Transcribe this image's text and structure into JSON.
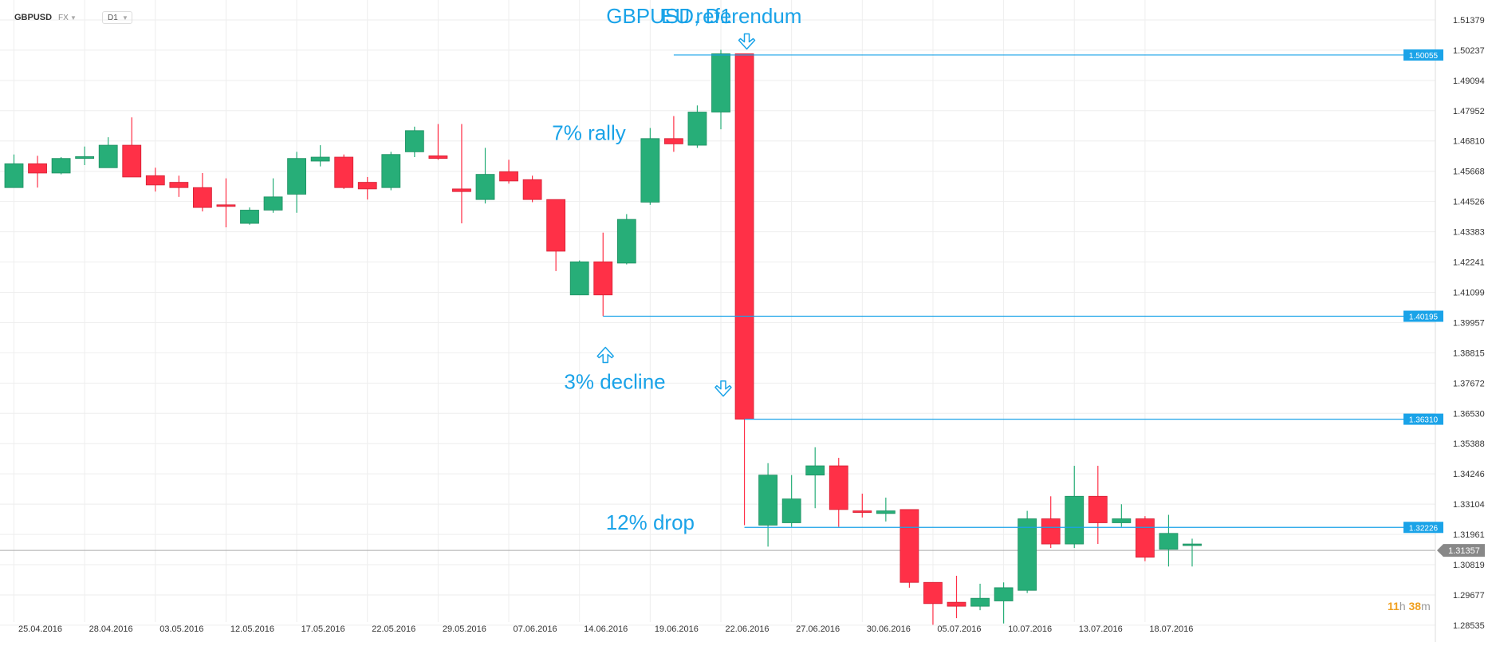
{
  "header": {
    "symbol": "GBPUSD",
    "market": "FX",
    "timeframe": "D1"
  },
  "countdown": {
    "hours": "11",
    "hours_unit": "h",
    "minutes": "38",
    "minutes_unit": "m"
  },
  "colors": {
    "bull": "#27ae78",
    "bear": "#ff3047",
    "line": "#1aa3e8",
    "annotation": "#1aa3e8",
    "grid": "#eeeeee",
    "axis_text": "#333333",
    "current_price_line": "#aaaaaa",
    "current_price_tag": "#888888"
  },
  "chart_data": {
    "type": "candlestick",
    "y_range": [
      1.279,
      1.5213
    ],
    "y_ticks": [
      "1.51379",
      "1.50237",
      "1.49094",
      "1.47952",
      "1.46810",
      "1.45668",
      "1.44526",
      "1.43383",
      "1.42241",
      "1.41099",
      "1.39957",
      "1.38815",
      "1.37672",
      "1.36530",
      "1.35388",
      "1.34246",
      "1.33104",
      "1.31961",
      "1.30819",
      "1.29677",
      "1.28535"
    ],
    "x_labels": [
      {
        "index": 0,
        "label": "25.04.2016"
      },
      {
        "index": 3,
        "label": "28.04.2016"
      },
      {
        "index": 6,
        "label": "03.05.2016"
      },
      {
        "index": 9,
        "label": "12.05.2016"
      },
      {
        "index": 12,
        "label": "17.05.2016"
      },
      {
        "index": 15,
        "label": "22.05.2016"
      },
      {
        "index": 18,
        "label": "29.05.2016"
      },
      {
        "index": 21,
        "label": "07.06.2016"
      },
      {
        "index": 24,
        "label": "14.06.2016"
      },
      {
        "index": 27,
        "label": "19.06.2016"
      },
      {
        "index": 30,
        "label": "22.06.2016"
      },
      {
        "index": 33,
        "label": "27.06.2016"
      },
      {
        "index": 36,
        "label": "30.06.2016"
      },
      {
        "index": 39,
        "label": "05.07.2016"
      },
      {
        "index": 42,
        "label": "10.07.2016"
      },
      {
        "index": 45,
        "label": "13.07.2016"
      },
      {
        "index": 48,
        "label": "18.07.2016"
      }
    ],
    "candles": [
      {
        "o": 1.4505,
        "h": 1.463,
        "l": 1.4505,
        "c": 1.4595
      },
      {
        "o": 1.4595,
        "h": 1.4625,
        "l": 1.4505,
        "c": 1.456
      },
      {
        "o": 1.456,
        "h": 1.462,
        "l": 1.4555,
        "c": 1.4615
      },
      {
        "o": 1.4615,
        "h": 1.466,
        "l": 1.459,
        "c": 1.4622
      },
      {
        "o": 1.458,
        "h": 1.4695,
        "l": 1.458,
        "c": 1.4665
      },
      {
        "o": 1.4665,
        "h": 1.477,
        "l": 1.4545,
        "c": 1.4545
      },
      {
        "o": 1.455,
        "h": 1.458,
        "l": 1.449,
        "c": 1.4515
      },
      {
        "o": 1.4525,
        "h": 1.455,
        "l": 1.447,
        "c": 1.4505
      },
      {
        "o": 1.4505,
        "h": 1.456,
        "l": 1.4415,
        "c": 1.443
      },
      {
        "o": 1.444,
        "h": 1.454,
        "l": 1.4355,
        "c": 1.4435
      },
      {
        "o": 1.437,
        "h": 1.443,
        "l": 1.4365,
        "c": 1.442
      },
      {
        "o": 1.442,
        "h": 1.454,
        "l": 1.441,
        "c": 1.447
      },
      {
        "o": 1.448,
        "h": 1.464,
        "l": 1.441,
        "c": 1.4615
      },
      {
        "o": 1.4605,
        "h": 1.4665,
        "l": 1.4585,
        "c": 1.462
      },
      {
        "o": 1.462,
        "h": 1.463,
        "l": 1.45,
        "c": 1.4505
      },
      {
        "o": 1.4525,
        "h": 1.4545,
        "l": 1.446,
        "c": 1.45
      },
      {
        "o": 1.4505,
        "h": 1.464,
        "l": 1.4495,
        "c": 1.463
      },
      {
        "o": 1.464,
        "h": 1.4735,
        "l": 1.462,
        "c": 1.472
      },
      {
        "o": 1.4625,
        "h": 1.4745,
        "l": 1.461,
        "c": 1.4615
      },
      {
        "o": 1.45,
        "h": 1.4745,
        "l": 1.437,
        "c": 1.449
      },
      {
        "o": 1.446,
        "h": 1.4655,
        "l": 1.4445,
        "c": 1.4555
      },
      {
        "o": 1.4565,
        "h": 1.461,
        "l": 1.452,
        "c": 1.453
      },
      {
        "o": 1.4535,
        "h": 1.455,
        "l": 1.445,
        "c": 1.446
      },
      {
        "o": 1.446,
        "h": 1.446,
        "l": 1.419,
        "c": 1.4265
      },
      {
        "o": 1.41,
        "h": 1.423,
        "l": 1.41,
        "c": 1.4225
      },
      {
        "o": 1.4225,
        "h": 1.4335,
        "l": 1.402,
        "c": 1.41
      },
      {
        "o": 1.422,
        "h": 1.4405,
        "l": 1.4215,
        "c": 1.4385
      },
      {
        "o": 1.445,
        "h": 1.473,
        "l": 1.444,
        "c": 1.469
      },
      {
        "o": 1.469,
        "h": 1.4775,
        "l": 1.464,
        "c": 1.467
      },
      {
        "o": 1.4665,
        "h": 1.4815,
        "l": 1.4655,
        "c": 1.479
      },
      {
        "o": 1.479,
        "h": 1.5025,
        "l": 1.4725,
        "c": 1.501
      },
      {
        "o": 1.501,
        "h": 1.501,
        "l": 1.3231,
        "c": 1.3631
      },
      {
        "o": 1.3231,
        "h": 1.3465,
        "l": 1.315,
        "c": 1.342
      },
      {
        "o": 1.324,
        "h": 1.342,
        "l": 1.3225,
        "c": 1.333
      },
      {
        "o": 1.342,
        "h": 1.3525,
        "l": 1.3295,
        "c": 1.3455
      },
      {
        "o": 1.3455,
        "h": 1.3485,
        "l": 1.3225,
        "c": 1.329
      },
      {
        "o": 1.3285,
        "h": 1.335,
        "l": 1.326,
        "c": 1.328
      },
      {
        "o": 1.3275,
        "h": 1.3335,
        "l": 1.3245,
        "c": 1.3285
      },
      {
        "o": 1.329,
        "h": 1.329,
        "l": 1.2995,
        "c": 1.3015
      },
      {
        "o": 1.3015,
        "h": 1.3015,
        "l": 1.2855,
        "c": 1.2935
      },
      {
        "o": 1.294,
        "h": 1.304,
        "l": 1.288,
        "c": 1.2925
      },
      {
        "o": 1.2925,
        "h": 1.301,
        "l": 1.291,
        "c": 1.2955
      },
      {
        "o": 1.2945,
        "h": 1.3015,
        "l": 1.286,
        "c": 1.2995
      },
      {
        "o": 1.2985,
        "h": 1.3285,
        "l": 1.2975,
        "c": 1.3255
      },
      {
        "o": 1.3255,
        "h": 1.334,
        "l": 1.3145,
        "c": 1.316
      },
      {
        "o": 1.316,
        "h": 1.3455,
        "l": 1.3145,
        "c": 1.334
      },
      {
        "o": 1.334,
        "h": 1.3455,
        "l": 1.316,
        "c": 1.324
      },
      {
        "o": 1.324,
        "h": 1.331,
        "l": 1.3225,
        "c": 1.3255
      },
      {
        "o": 1.3255,
        "h": 1.3265,
        "l": 1.3095,
        "c": 1.311
      },
      {
        "o": 1.314,
        "h": 1.327,
        "l": 1.3075,
        "c": 1.32
      },
      {
        "o": 1.316,
        "h": 1.318,
        "l": 1.3075,
        "c": 1.316
      }
    ],
    "price_lines": [
      {
        "value": 1.50055,
        "label": "1.50055",
        "from_index": 28
      },
      {
        "value": 1.40195,
        "label": "1.40195",
        "from_index": 25
      },
      {
        "value": 1.3631,
        "label": "1.36310",
        "from_index": 31
      },
      {
        "value": 1.32226,
        "label": "1.32226",
        "from_index": 31
      }
    ],
    "current_price": {
      "value": 1.31357,
      "label": "1.31357"
    },
    "annotations": [
      {
        "text": "GBPUSD, D1",
        "anchor_index": 27.8,
        "value": 1.5125,
        "size": 26
      },
      {
        "text": "EU referendum",
        "anchor_index": 30.45,
        "value": 1.5125,
        "size": 26
      },
      {
        "text": "7% rally",
        "anchor_index": 24.4,
        "value": 1.4685,
        "size": 26
      },
      {
        "text": "3% decline",
        "anchor_index": 25.5,
        "value": 1.3745,
        "size": 26
      },
      {
        "text": "12% drop",
        "anchor_index": 27.0,
        "value": 1.3215,
        "size": 26
      }
    ],
    "arrows": [
      {
        "direction": "down",
        "anchor_index": 31.1,
        "value": 1.5055
      },
      {
        "direction": "up",
        "anchor_index": 25.1,
        "value": 1.3875
      },
      {
        "direction": "down",
        "anchor_index": 30.1,
        "value": 1.3745
      }
    ]
  }
}
